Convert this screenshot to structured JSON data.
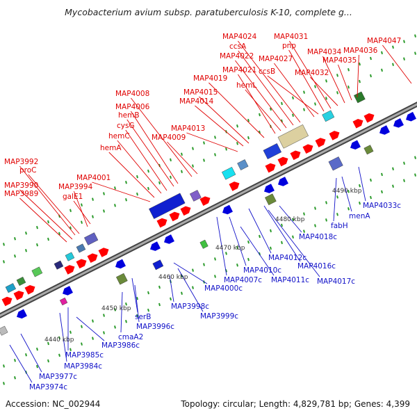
{
  "title": "Mycobacterium avium subsp. paratuberculosis K-10, complete g...",
  "footer": {
    "accession": "Accession: NC_002944",
    "summary": "Topology: circular; Length: 4,829,781 bp; Genes: 4,399"
  },
  "colors": {
    "top_labels": "#e00000",
    "bottom_labels": "#1010c8",
    "backbone": "#888888",
    "forward_cds": "#ff0000",
    "reverse_cds": "#0000dd",
    "tick": "#2a9a2a"
  },
  "scale_ticks": [
    "4440 kbp",
    "4450 kbp",
    "4460 kbp",
    "4470 kbp",
    "4480 kbp",
    "4490 kbp"
  ],
  "top_labels": [
    "MAP3989",
    "MAP3990",
    "MAP3992",
    "proC",
    "MAP3994",
    "galE1",
    "MAP4001",
    "hemA",
    "hemC",
    "cysG",
    "hemB",
    "MAP4006",
    "MAP4008",
    "MAP4009",
    "MAP4013",
    "MAP4014",
    "MAP4015",
    "MAP4019",
    "MAP4021",
    "hemL",
    "MAP4022",
    "ccsA",
    "MAP4024",
    "MAP4027",
    "ccsB",
    "pnp",
    "MAP4031",
    "MAP4032",
    "MAP4034",
    "MAP4035",
    "MAP4036",
    "MAP4047"
  ],
  "bottom_labels": [
    "MAP3974c",
    "MAP3977c",
    "MAP3984c",
    "MAP3985c",
    "MAP3986c",
    "cmaA2",
    "MAP3996c",
    "serB",
    "MAP3998c",
    "MAP3999c",
    "MAP4000c",
    "MAP4007c",
    "MAP4010c",
    "MAP4011c",
    "MAP4012c",
    "MAP4016c",
    "MAP4017c",
    "MAP4018c",
    "fabH",
    "menA",
    "MAP4033c"
  ]
}
